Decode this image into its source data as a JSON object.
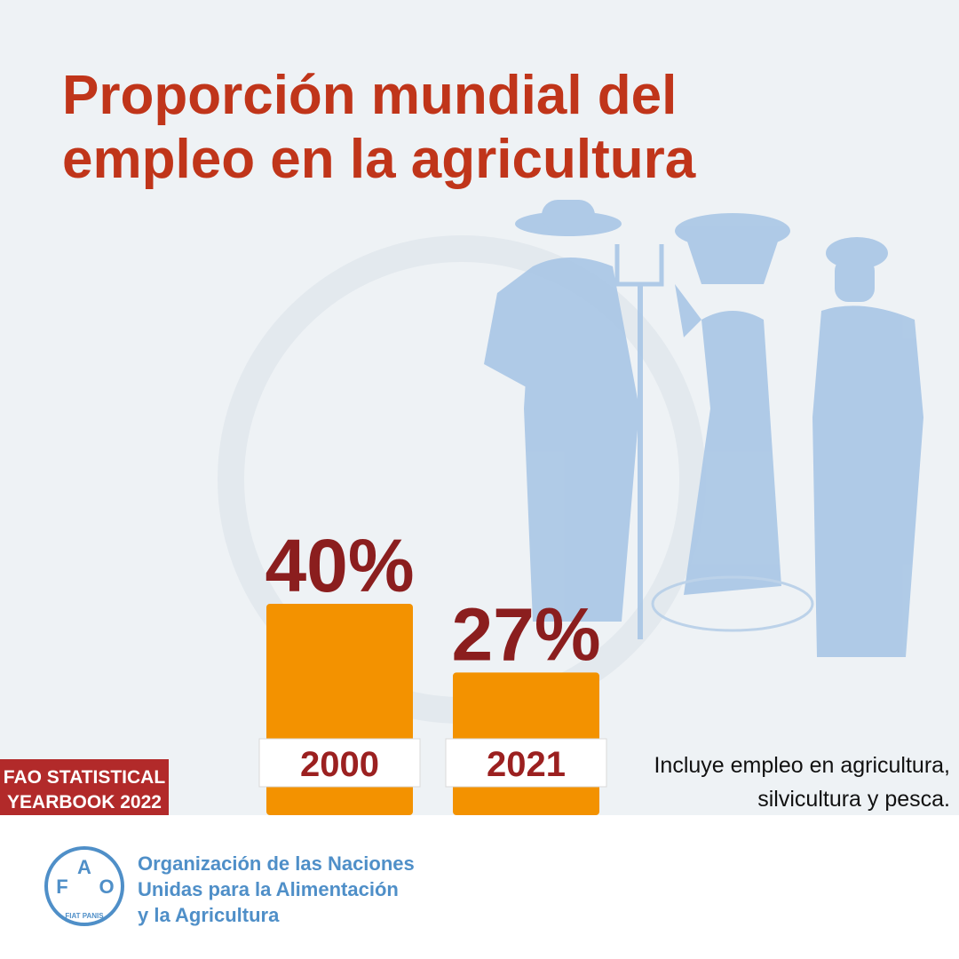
{
  "chart_data": {
    "type": "bar",
    "title_lines": [
      "Proporción mundial del",
      "empleo en la agricultura"
    ],
    "categories": [
      "2000",
      "2021"
    ],
    "values": [
      40,
      27
    ],
    "value_labels": [
      "40%",
      "27%"
    ],
    "color": "#f39200",
    "ylim": [
      0,
      100
    ],
    "note_lines": [
      "Incluye empleo en agricultura,",
      "silvicultura y pesca."
    ]
  },
  "badge": [
    "FAO STATISTICAL",
    "YEARBOOK 2022"
  ],
  "footer": {
    "logo_letters": [
      "F",
      "A",
      "O"
    ],
    "logo_motto": "FIAT PANIS",
    "org_lines": [
      "Organización de las Naciones",
      "Unidas para la Alimentación",
      "y la Agricultura"
    ]
  }
}
